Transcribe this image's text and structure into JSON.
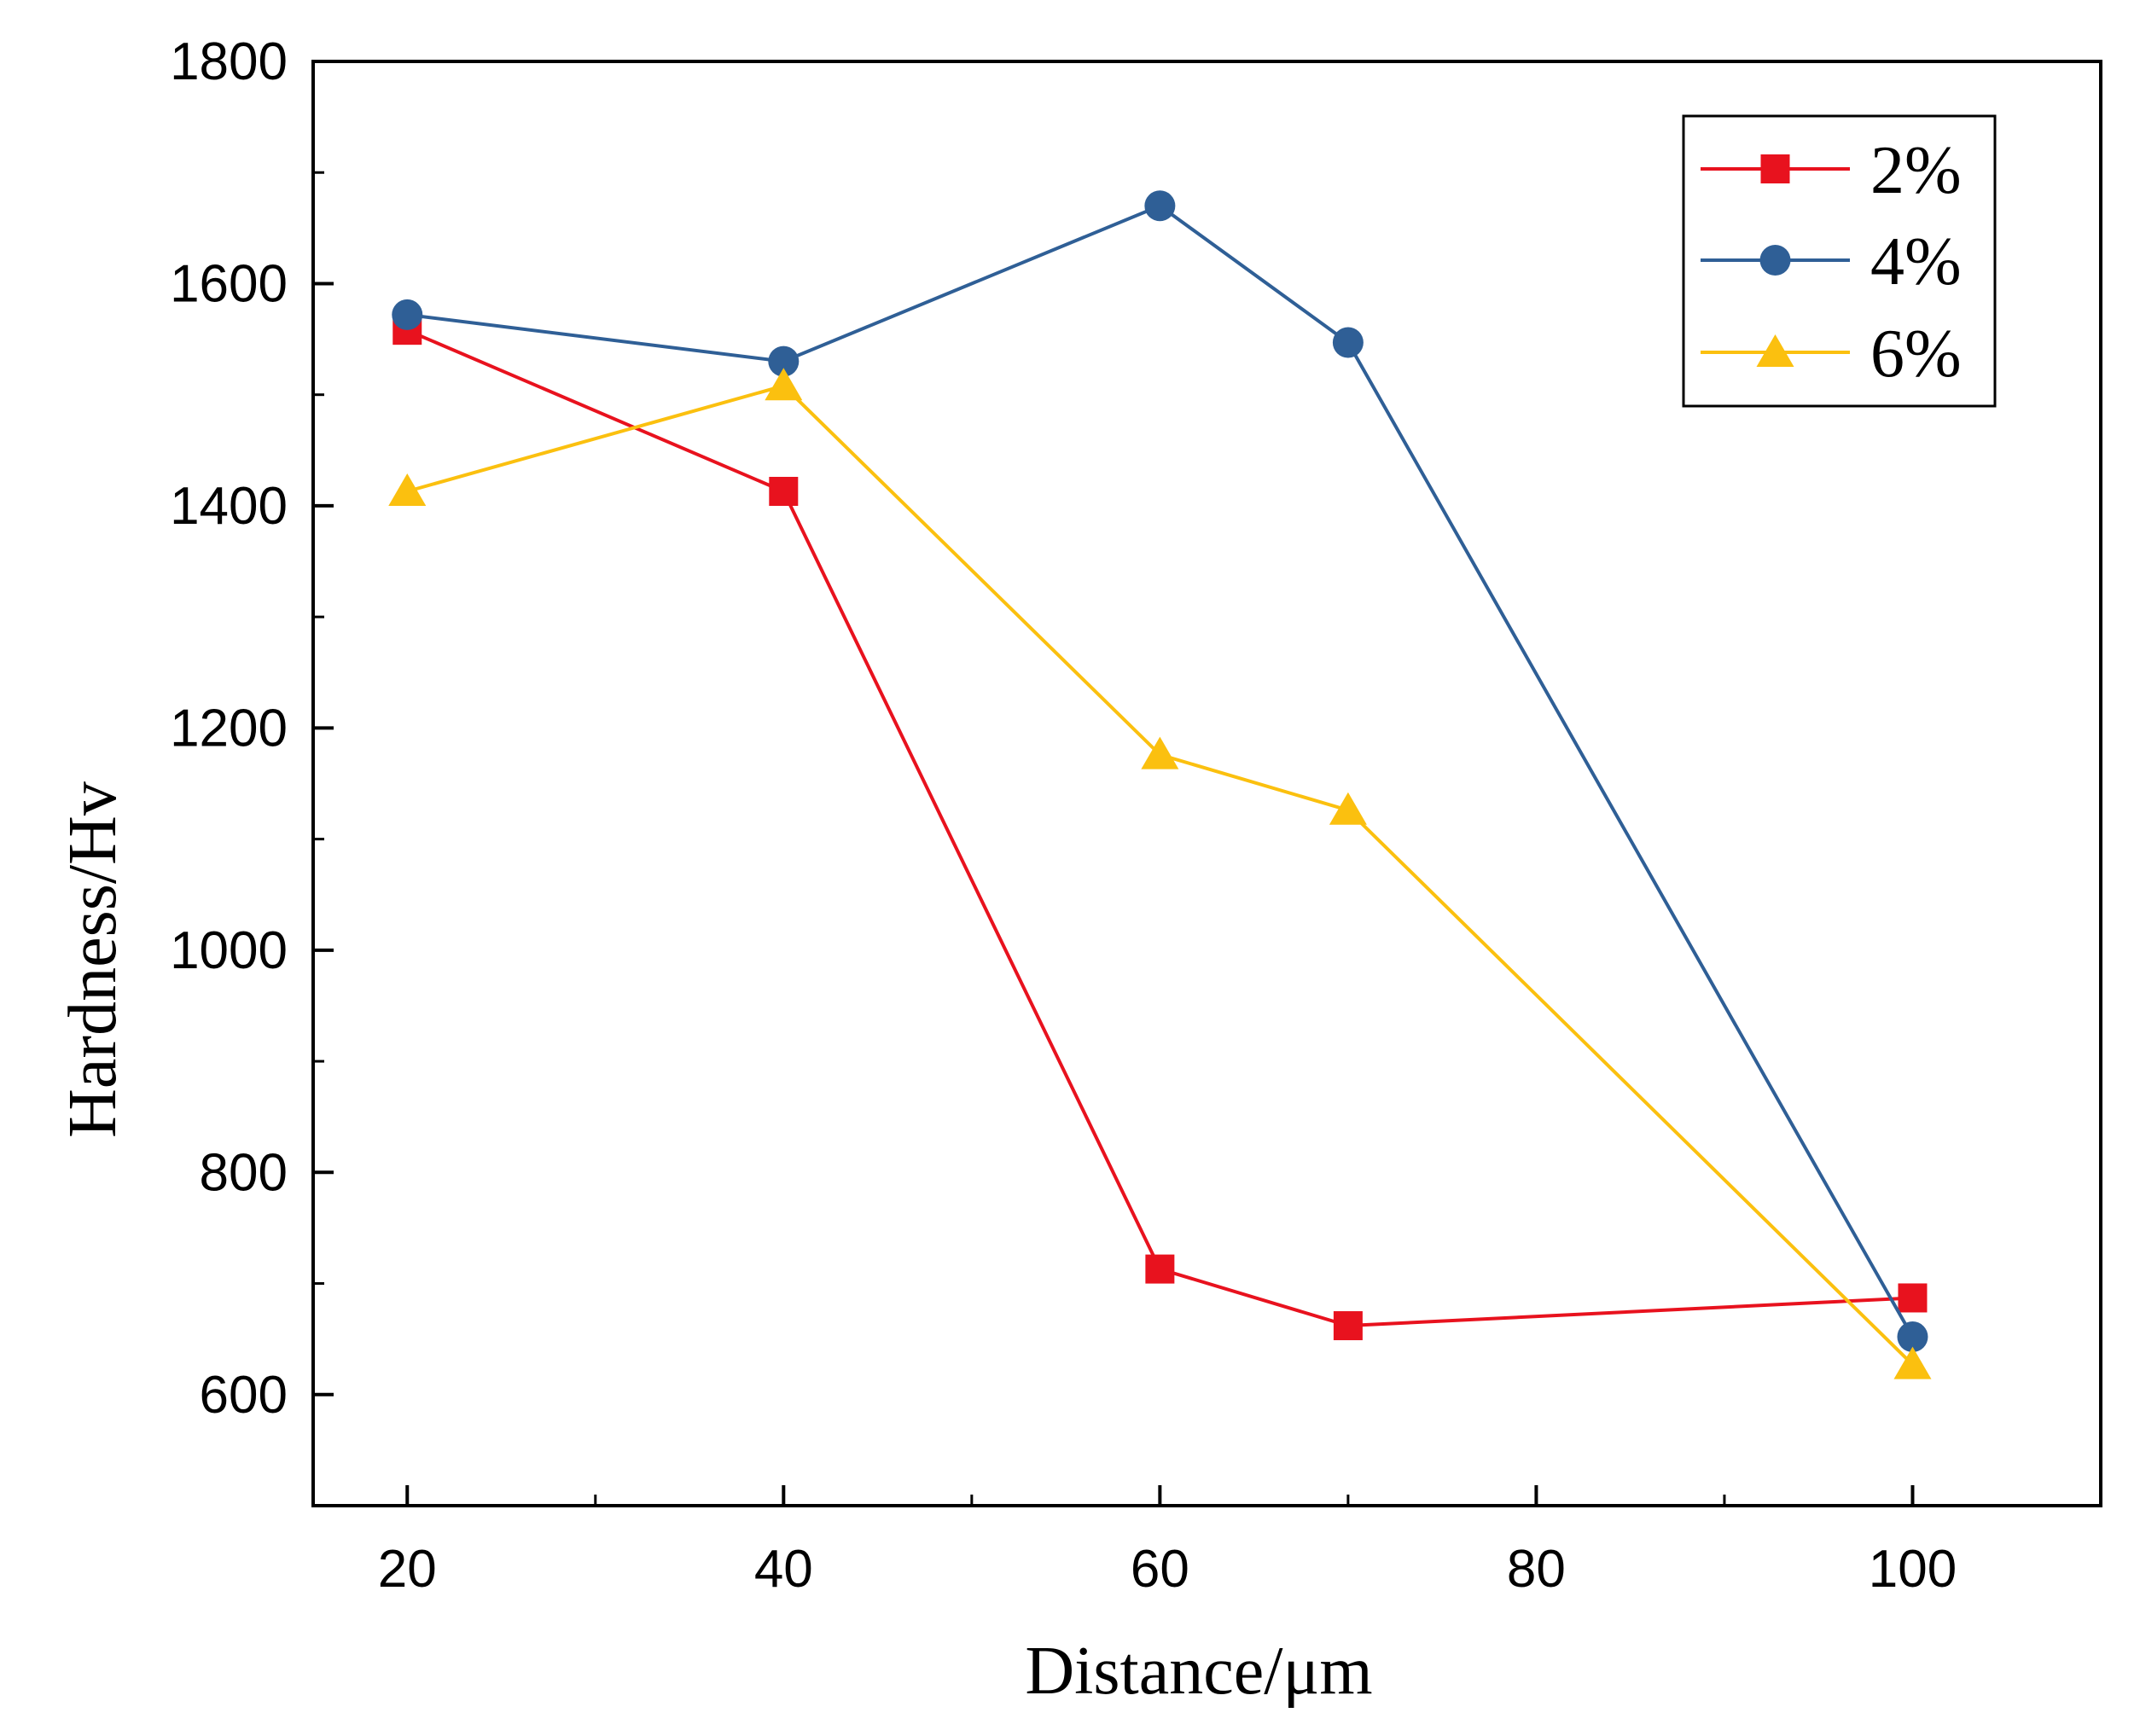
{
  "chart_data": {
    "type": "line",
    "title": "",
    "xlabel": "Distance/μm",
    "ylabel": "Hardness/Hv",
    "xlim": [
      15,
      110
    ],
    "ylim": [
      500,
      1800
    ],
    "xticks": [
      20,
      40,
      60,
      80,
      100
    ],
    "xticks_minor": [
      30,
      50,
      70,
      90
    ],
    "yticks": [
      600,
      800,
      1000,
      1200,
      1400,
      1600,
      1800
    ],
    "yticks_minor": [
      700,
      900,
      1100,
      1300,
      1500,
      1700
    ],
    "grid": false,
    "legend_position": "top-right",
    "x": [
      20,
      40,
      60,
      70,
      100
    ],
    "series": [
      {
        "name": "2%",
        "color": "#e8121e",
        "marker": "square",
        "values": [
          1558,
          1413,
          713,
          662,
          687
        ]
      },
      {
        "name": "4%",
        "color": "#2f5f96",
        "marker": "circle",
        "values": [
          1572,
          1530,
          1670,
          1547,
          652
        ]
      },
      {
        "name": "6%",
        "color": "#fbc00f",
        "marker": "triangle",
        "values": [
          1413,
          1508,
          1176,
          1126,
          627
        ]
      }
    ]
  }
}
